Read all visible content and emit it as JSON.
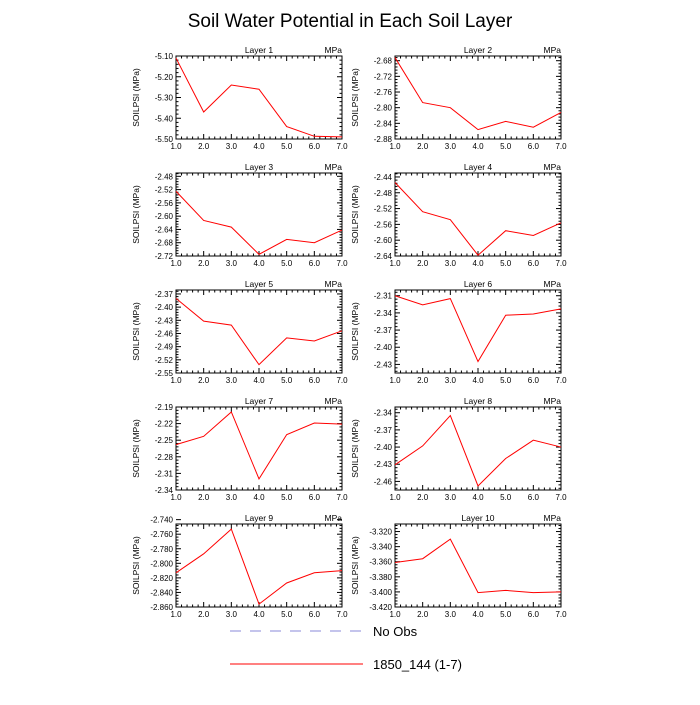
{
  "title": "Soil Water Potential in Each Soil Layer",
  "chart_data": {
    "type": "line",
    "x": [
      1,
      2,
      3,
      4,
      5,
      6,
      7
    ],
    "x_tick_labels": [
      "1.0",
      "2.0",
      "3.0",
      "4.0",
      "5.0",
      "6.0",
      "7.0"
    ],
    "ylabel": "SOILPSI  (MPa)",
    "units": "MPa",
    "grid": false,
    "series_color": "#ff0000",
    "obs_color": "#8a8ad8",
    "panels": [
      {
        "title": "Layer 1",
        "ylim": [
          -5.5,
          -5.1
        ],
        "y_ticks": [
          -5.5,
          -5.4,
          -5.3,
          -5.2,
          -5.1
        ],
        "y_tick_labels": [
          "-5.50",
          "-5.40",
          "-5.30",
          "-5.20",
          "-5.10"
        ],
        "values": [
          -5.11,
          -5.37,
          -5.24,
          -5.26,
          -5.44,
          -5.487,
          -5.49
        ]
      },
      {
        "title": "Layer 2",
        "ylim": [
          -2.88,
          -2.668
        ],
        "y_ticks": [
          -2.88,
          -2.84,
          -2.8,
          -2.76,
          -2.72,
          -2.68
        ],
        "y_tick_labels": [
          "-2.88",
          "-2.84",
          "-2.80",
          "-2.76",
          "-2.72",
          "-2.68"
        ],
        "values": [
          -2.672,
          -2.787,
          -2.8,
          -2.856,
          -2.835,
          -2.85,
          -2.812
        ]
      },
      {
        "title": "Layer 3",
        "ylim": [
          -2.72,
          -2.47
        ],
        "y_ticks": [
          -2.72,
          -2.68,
          -2.64,
          -2.6,
          -2.56,
          -2.52,
          -2.48
        ],
        "y_tick_labels": [
          "-2.72",
          "-2.68",
          "-2.64",
          "-2.60",
          "-2.56",
          "-2.52",
          "-2.48"
        ],
        "values": [
          -2.525,
          -2.613,
          -2.633,
          -2.715,
          -2.67,
          -2.68,
          -2.642
        ]
      },
      {
        "title": "Layer 4",
        "ylim": [
          -2.64,
          -2.43
        ],
        "y_ticks": [
          -2.64,
          -2.6,
          -2.56,
          -2.52,
          -2.48,
          -2.44
        ],
        "y_tick_labels": [
          "-2.64",
          "-2.60",
          "-2.56",
          "-2.52",
          "-2.48",
          "-2.44"
        ],
        "values": [
          -2.454,
          -2.528,
          -2.548,
          -2.638,
          -2.576,
          -2.588,
          -2.556
        ]
      },
      {
        "title": "Layer 5",
        "ylim": [
          -2.55,
          -2.361
        ],
        "y_ticks": [
          -2.55,
          -2.52,
          -2.49,
          -2.46,
          -2.43,
          -2.4,
          -2.37
        ],
        "y_tick_labels": [
          "-2.55",
          "-2.52",
          "-2.49",
          "-2.46",
          "-2.43",
          "-2.40",
          "-2.37"
        ],
        "values": [
          -2.38,
          -2.432,
          -2.441,
          -2.531,
          -2.47,
          -2.477,
          -2.454
        ]
      },
      {
        "title": "Layer 6",
        "ylim": [
          -2.445,
          -2.3
        ],
        "y_ticks": [
          -2.43,
          -2.4,
          -2.37,
          -2.34,
          -2.31
        ],
        "y_tick_labels": [
          "-2.43",
          "-2.40",
          "-2.37",
          "-2.34",
          "-2.31"
        ],
        "values": [
          -2.31,
          -2.326,
          -2.315,
          -2.425,
          -2.344,
          -2.342,
          -2.333
        ]
      },
      {
        "title": "Layer 7",
        "ylim": [
          -2.34,
          -2.19
        ],
        "y_ticks": [
          -2.34,
          -2.31,
          -2.28,
          -2.25,
          -2.22,
          -2.19
        ],
        "y_tick_labels": [
          "-2.34",
          "-2.31",
          "-2.28",
          "-2.25",
          "-2.22",
          "-2.19"
        ],
        "values": [
          -2.258,
          -2.243,
          -2.199,
          -2.32,
          -2.24,
          -2.219,
          -2.221
        ]
      },
      {
        "title": "Layer 8",
        "ylim": [
          -2.475,
          -2.33
        ],
        "y_ticks": [
          -2.46,
          -2.43,
          -2.4,
          -2.37,
          -2.34
        ],
        "y_tick_labels": [
          "-2.46",
          "-2.43",
          "-2.40",
          "-2.37",
          "-2.34"
        ],
        "values": [
          -2.431,
          -2.398,
          -2.345,
          -2.468,
          -2.42,
          -2.388,
          -2.4
        ]
      },
      {
        "title": "Layer 9",
        "ylim": [
          -2.86,
          -2.746
        ],
        "y_ticks": [
          -2.86,
          -2.84,
          -2.82,
          -2.8,
          -2.78,
          -2.76,
          -2.74
        ],
        "y_tick_labels": [
          "-2.860",
          "-2.840",
          "-2.820",
          "-2.800",
          "-2.780",
          "-2.760",
          "-2.740"
        ],
        "values": [
          -2.813,
          -2.787,
          -2.753,
          -2.856,
          -2.827,
          -2.813,
          -2.81
        ]
      },
      {
        "title": "Layer 10",
        "ylim": [
          -3.42,
          -3.31
        ],
        "y_ticks": [
          -3.42,
          -3.4,
          -3.38,
          -3.36,
          -3.34,
          -3.32
        ],
        "y_tick_labels": [
          "-3.420",
          "-3.400",
          "-3.380",
          "-3.360",
          "-3.340",
          "-3.320"
        ],
        "values": [
          -3.361,
          -3.356,
          -3.33,
          -3.401,
          -3.398,
          -3.401,
          -3.4
        ]
      }
    ]
  },
  "legend": {
    "obs_label": "No Obs",
    "model_label": "1850_144 (1-7)"
  }
}
